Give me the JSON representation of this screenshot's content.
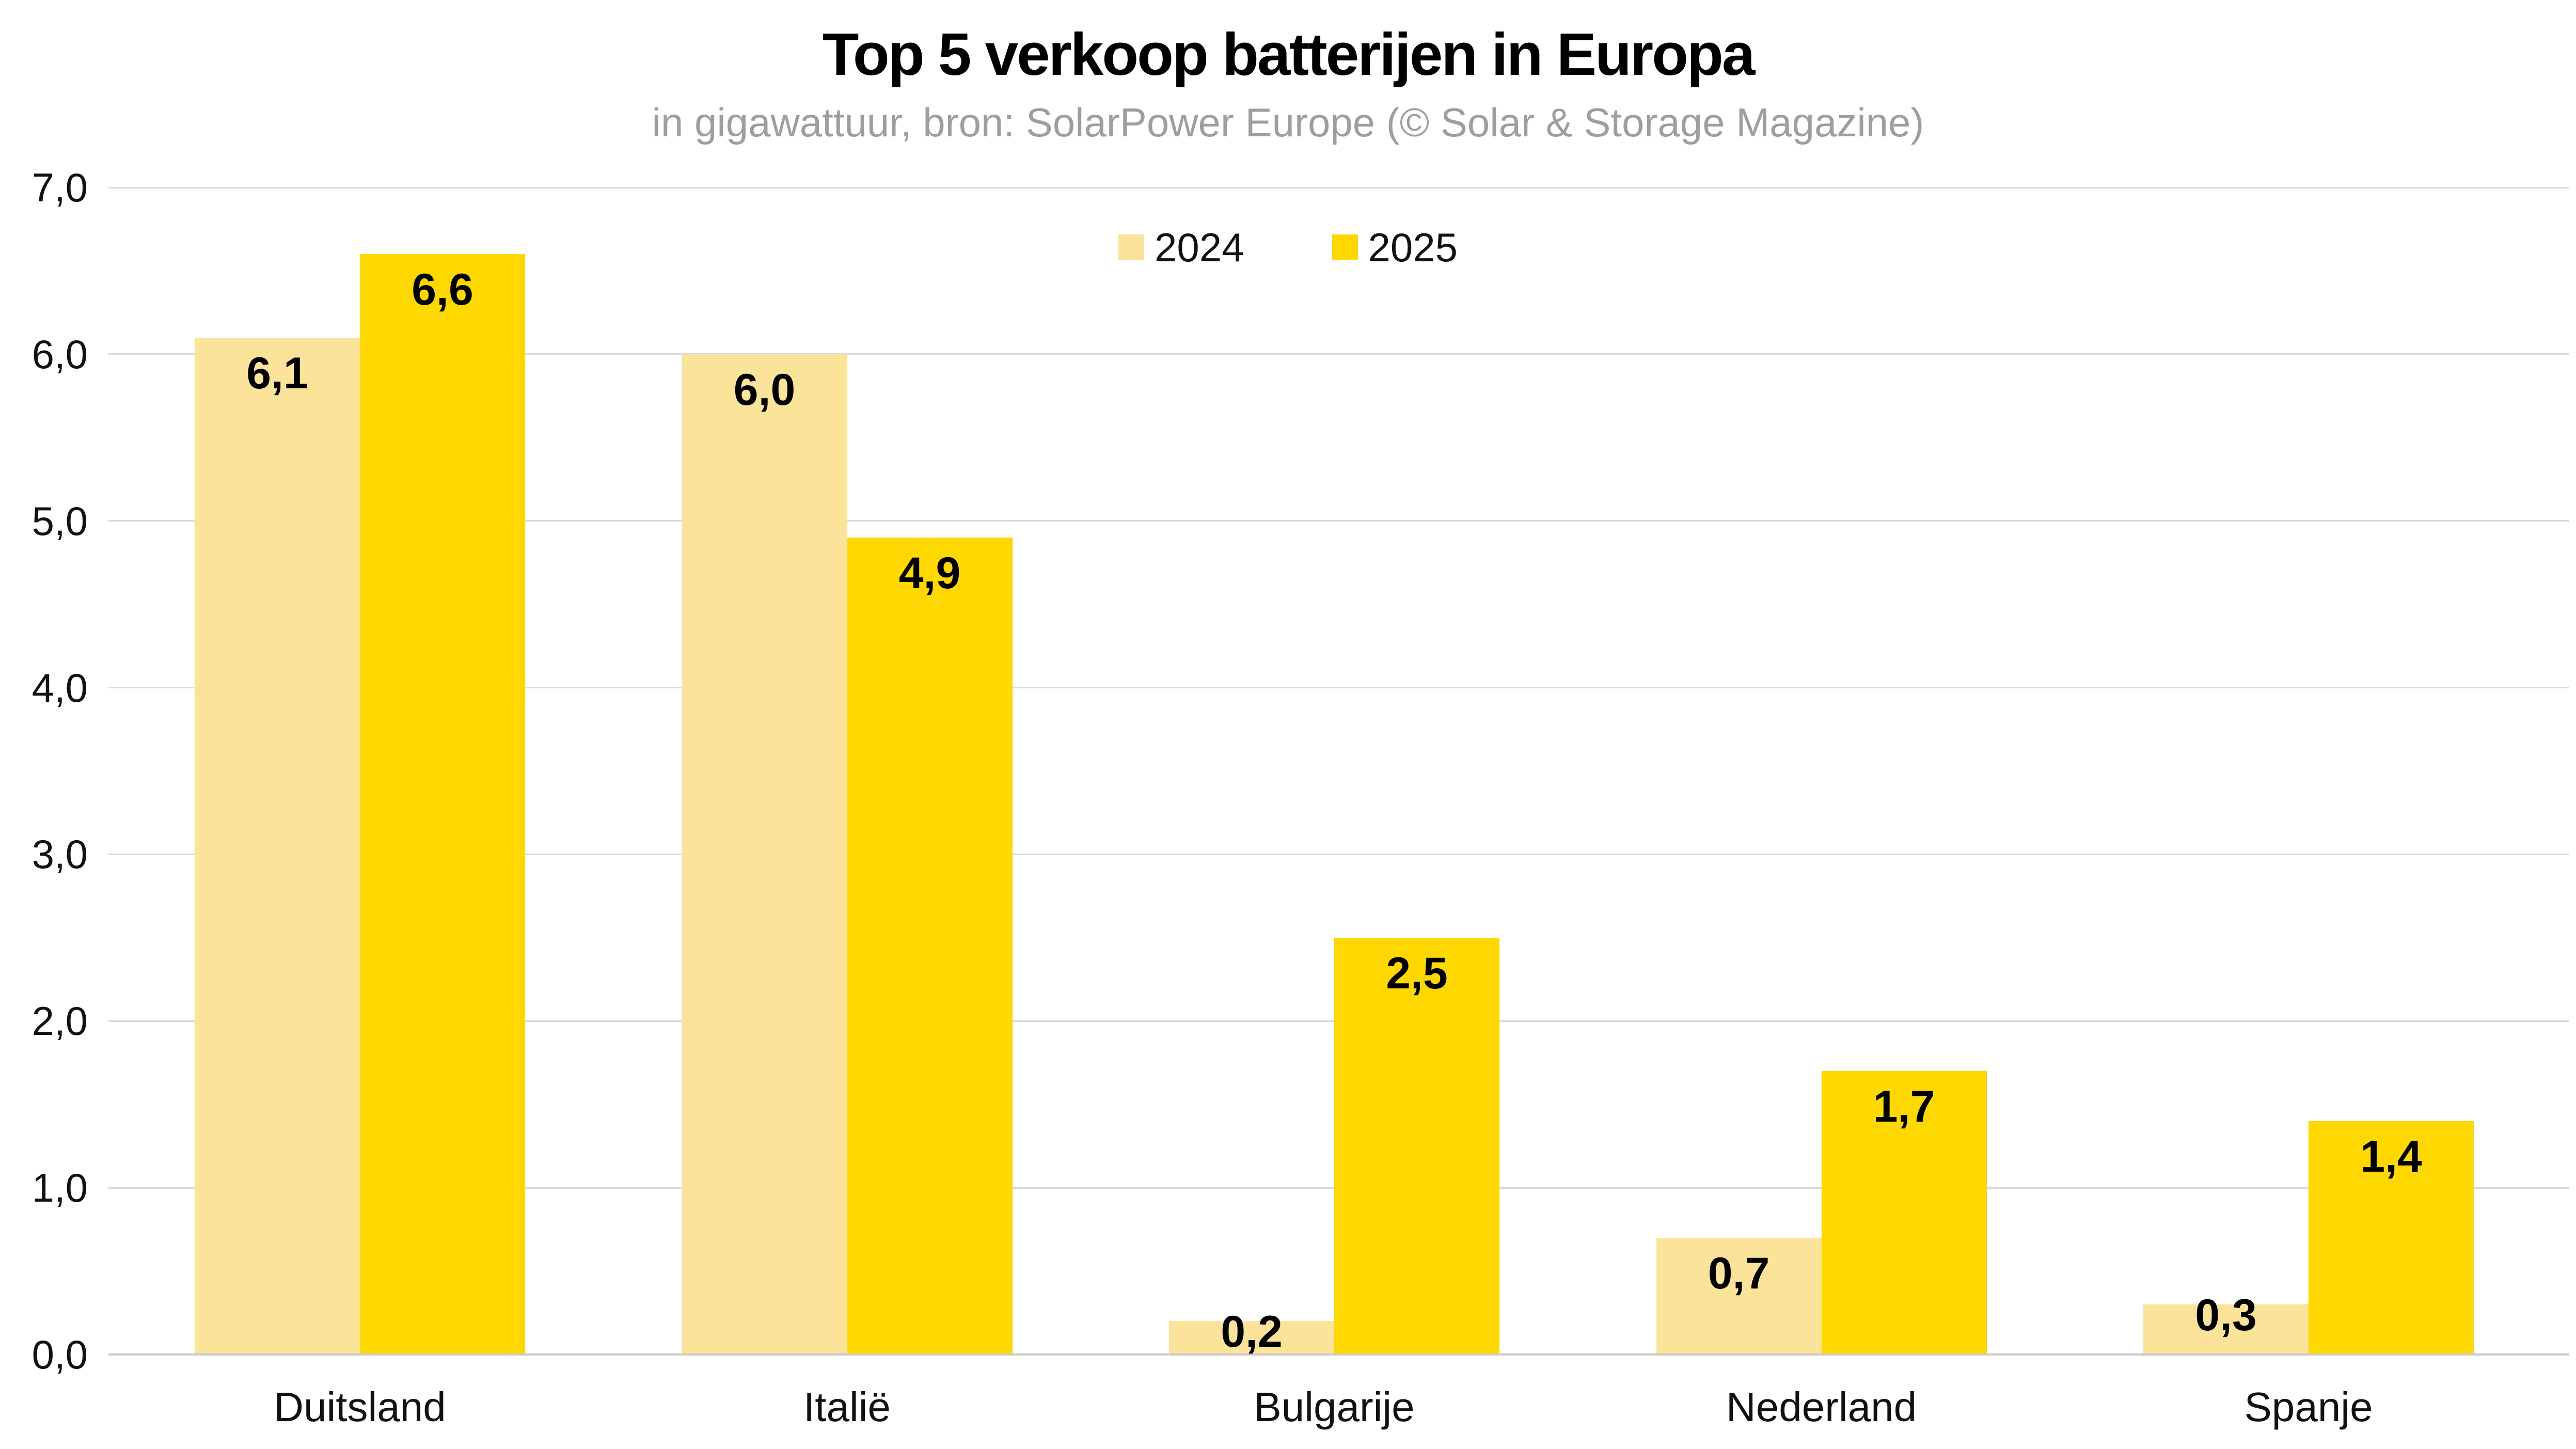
{
  "title": "Top 5 verkoop batterijen in Europa",
  "subtitle": "in gigawattuur, bron: SolarPower Europe (© Solar & Storage Magazine)",
  "legend": [
    {
      "label": "2024",
      "color": "#FBE49A"
    },
    {
      "label": "2025",
      "color": "#FED800"
    }
  ],
  "colors": {
    "series_2024": "#FBE49A",
    "series_2025": "#FED800",
    "gridline": "#d9d9d9",
    "baseline": "#c9c9c9",
    "subtitle_text": "#9e9e9e",
    "label_text": "#000000"
  },
  "chart_data": {
    "type": "bar",
    "title": "Top 5 verkoop batterijen in Europa",
    "subtitle": "in gigawattuur, bron: SolarPower Europe (© Solar & Storage Magazine)",
    "categories": [
      "Duitsland",
      "Italië",
      "Bulgarije",
      "Nederland",
      "Spanje"
    ],
    "series": [
      {
        "name": "2024",
        "color": "#FBE49A",
        "values": [
          6.1,
          6.0,
          0.2,
          0.7,
          0.3
        ],
        "value_labels": [
          "6,1",
          "6,0",
          "0,2",
          "0,7",
          "0,3"
        ]
      },
      {
        "name": "2025",
        "color": "#FED800",
        "values": [
          6.6,
          4.9,
          2.5,
          1.7,
          1.4
        ],
        "value_labels": [
          "6,6",
          "4,9",
          "2,5",
          "1,7",
          "1,4"
        ]
      }
    ],
    "xlabel": "",
    "ylabel": "",
    "ylim": [
      0,
      7
    ],
    "ytick_step": 1,
    "ytick_labels": [
      "0,0",
      "1,0",
      "2,0",
      "3,0",
      "4,0",
      "5,0",
      "6,0",
      "7,0"
    ],
    "grid": true,
    "legend_position": "top-center",
    "value_label_format": "comma-decimal"
  }
}
